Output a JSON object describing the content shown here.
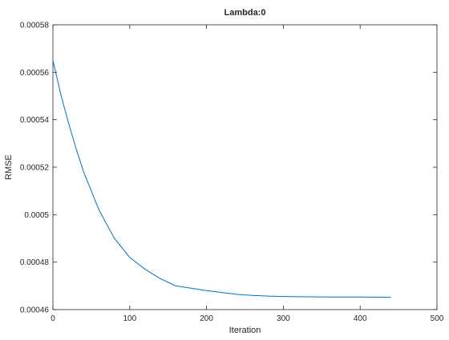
{
  "chart_data": {
    "type": "line",
    "title": "Lambda:0",
    "xlabel": "Iteration",
    "ylabel": "RMSE",
    "xlim": [
      0,
      500
    ],
    "ylim": [
      0.00046,
      0.00058
    ],
    "x_ticks": [
      "0",
      "100",
      "200",
      "300",
      "400",
      "500"
    ],
    "y_ticks": [
      "0.00046",
      "0.00048",
      "0.0005",
      "0.00052",
      "0.00054",
      "0.00056",
      "0.00058"
    ],
    "grid": false,
    "legend": "none",
    "series": [
      {
        "color": "#0072bd",
        "x": [
          0,
          10,
          20,
          30,
          40,
          50,
          60,
          70,
          80,
          90,
          100,
          120,
          140,
          160,
          180,
          200,
          220,
          240,
          260,
          280,
          300,
          330,
          360,
          400,
          440
        ],
        "y": [
          0.000565,
          0.000551,
          0.000539,
          0.000528,
          0.000518,
          0.00051,
          0.000502,
          0.000496,
          0.00049,
          0.000486,
          0.000482,
          0.000477,
          0.000473,
          0.00047,
          0.000469,
          0.000468,
          0.0004672,
          0.0004664,
          0.000466,
          0.0004657,
          0.0004655,
          0.0004654,
          0.0004653,
          0.0004653,
          0.0004652
        ]
      }
    ]
  }
}
